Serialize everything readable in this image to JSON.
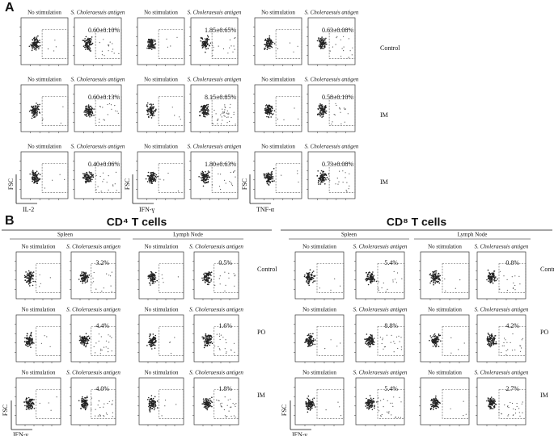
{
  "panel_a": {
    "label": "A",
    "column_headers": [
      "No stimulation",
      "S. Choleraesuis antigen"
    ],
    "y_axis_label": "FSC",
    "row_labels": [
      "Control",
      "IM",
      "IM"
    ],
    "groups": [
      {
        "x_axis_label": "IL-2",
        "values": [
          "0.60±0.10%",
          "0.60±0.13%",
          "0.40±0.06%"
        ]
      },
      {
        "x_axis_label": "IFN-γ",
        "values": [
          "1.85±0.65%",
          "8.15±0.85%",
          "1.80±0.63%"
        ]
      },
      {
        "x_axis_label": "TNF-α",
        "values": [
          "0.63±0.08%",
          "0.58±0.10%",
          "0.73±0.08%"
        ]
      }
    ]
  },
  "panel_b": {
    "label": "B",
    "column_headers": [
      "No stimulation",
      "S. Choleraesuis antigen"
    ],
    "tissues": [
      "Spleen",
      "Lymph Node"
    ],
    "row_labels": [
      "Control",
      "PO",
      "IM"
    ],
    "y_axis_label": "FSC",
    "x_axis_label": "IFN-γ",
    "sections": [
      {
        "title": "CD⁴ T cells",
        "values": [
          [
            "3.2%",
            "0.5%"
          ],
          [
            "4.4%",
            "1.6%"
          ],
          [
            "4.0%",
            "1.8%"
          ]
        ]
      },
      {
        "title": "CD⁸ T cells",
        "values": [
          [
            "5.4%",
            "0.8%"
          ],
          [
            "8.8%",
            "4.2%"
          ],
          [
            "5.4%",
            "2.7%"
          ]
        ]
      }
    ]
  }
}
